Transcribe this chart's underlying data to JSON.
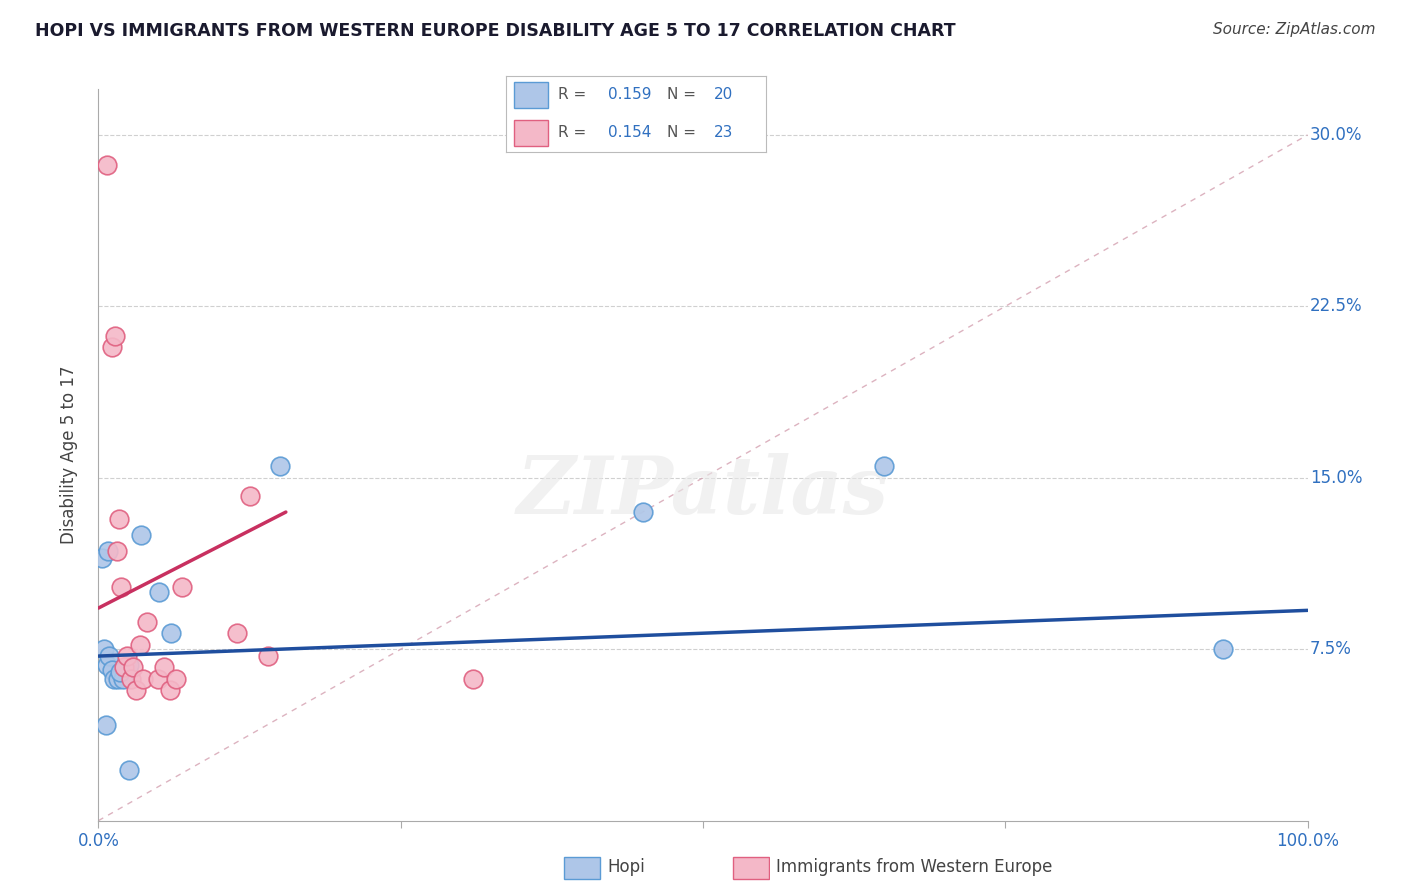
{
  "title": "HOPI VS IMMIGRANTS FROM WESTERN EUROPE DISABILITY AGE 5 TO 17 CORRELATION CHART",
  "source": "Source: ZipAtlas.com",
  "ylabel": "Disability Age 5 to 17",
  "xlim": [
    0.0,
    1.0
  ],
  "ylim": [
    0.0,
    0.32
  ],
  "yticks": [
    0.075,
    0.15,
    0.225,
    0.3
  ],
  "ytick_labels": [
    "7.5%",
    "15.0%",
    "22.5%",
    "30.0%"
  ],
  "hopi_color": "#aec6e8",
  "hopi_edge_color": "#5b9bd5",
  "pink_color": "#f4b8c8",
  "pink_edge_color": "#e06080",
  "blue_line_color": "#1f4e9e",
  "pink_line_color": "#c83060",
  "diag_line_color": "#d4a0b0",
  "R_hopi": 0.159,
  "N_hopi": 20,
  "R_pink": 0.154,
  "N_pink": 23,
  "hopi_x": [
    0.003,
    0.005,
    0.007,
    0.009,
    0.011,
    0.013,
    0.016,
    0.02,
    0.025,
    0.035,
    0.05,
    0.06,
    0.15,
    0.45,
    0.65,
    0.93,
    0.025,
    0.006,
    0.018,
    0.008
  ],
  "hopi_y": [
    0.115,
    0.075,
    0.068,
    0.072,
    0.066,
    0.062,
    0.062,
    0.062,
    0.068,
    0.125,
    0.1,
    0.082,
    0.155,
    0.135,
    0.155,
    0.075,
    0.022,
    0.042,
    0.065,
    0.118
  ],
  "pink_x": [
    0.007,
    0.011,
    0.014,
    0.015,
    0.017,
    0.019,
    0.021,
    0.024,
    0.027,
    0.029,
    0.031,
    0.034,
    0.037,
    0.04,
    0.049,
    0.054,
    0.059,
    0.064,
    0.069,
    0.115,
    0.125,
    0.14,
    0.31
  ],
  "pink_y": [
    0.287,
    0.207,
    0.212,
    0.118,
    0.132,
    0.102,
    0.067,
    0.072,
    0.062,
    0.067,
    0.057,
    0.077,
    0.062,
    0.087,
    0.062,
    0.067,
    0.057,
    0.062,
    0.102,
    0.082,
    0.142,
    0.072,
    0.062
  ],
  "watermark": "ZIPatlas",
  "background_color": "#ffffff",
  "grid_color": "#d0d0d0",
  "legend_R_color": "#3070c0",
  "legend_N_color": "#3070c0",
  "tick_color": "#3070c0",
  "title_color": "#1a1a2e",
  "source_color": "#444444",
  "ylabel_color": "#444444"
}
